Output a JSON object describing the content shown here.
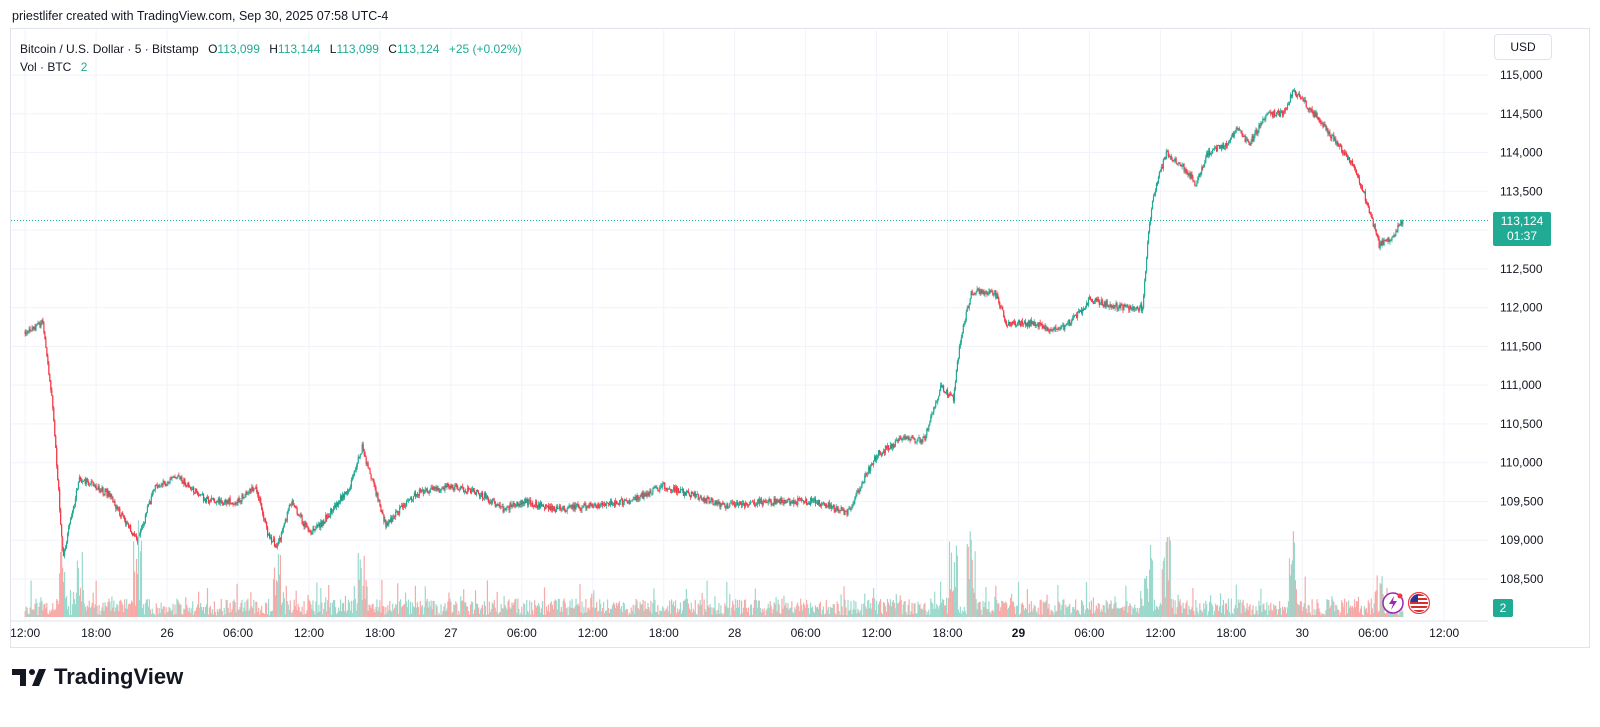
{
  "header": {
    "attribution": "priestlifer created with TradingView.com, Sep 30, 2025 07:58 UTC-4"
  },
  "legend": {
    "symbol": "Bitcoin / U.S. Dollar · 5 · Bitstamp",
    "open_label": "O",
    "open": "113,099",
    "high_label": "H",
    "high": "113,144",
    "low_label": "L",
    "low": "113,099",
    "close_label": "C",
    "close": "113,124",
    "change": "+25 (+0.02%)",
    "vol_label": "Vol · BTC",
    "vol_value": "2"
  },
  "toolbar": {
    "currency": "USD"
  },
  "price_badge": {
    "price": "113,124",
    "countdown": "01:37"
  },
  "vol_badge": "2",
  "logo": {
    "text": "TradingView"
  },
  "icons": [
    "lightning-event-icon",
    "us-flag-event-icon"
  ],
  "colors": {
    "up": "#22ab94",
    "down": "#f23645",
    "vol_up": "#9bd9cd",
    "vol_down": "#f7a9a7",
    "grid": "#f0f3fa",
    "axis_text": "#131722"
  },
  "chart_data": {
    "type": "candlestick",
    "title": "Bitcoin / U.S. Dollar · 5 · Bitstamp",
    "ylim": [
      108200,
      115250
    ],
    "y_ticks": [
      "115,000",
      "114,500",
      "114,000",
      "113,500",
      "113,000",
      "112,500",
      "112,000",
      "111,500",
      "111,000",
      "110,500",
      "110,000",
      "109,500",
      "109,000",
      "108,500"
    ],
    "y_tick_values": [
      115000,
      114500,
      114000,
      113500,
      113000,
      112500,
      112000,
      111500,
      111000,
      110500,
      110000,
      109500,
      109000,
      108500
    ],
    "x_ticks": [
      {
        "label": "12:00",
        "hour": 0,
        "bold": false
      },
      {
        "label": "18:00",
        "hour": 6,
        "bold": false
      },
      {
        "label": "26",
        "hour": 12,
        "bold": false
      },
      {
        "label": "06:00",
        "hour": 18,
        "bold": false
      },
      {
        "label": "12:00",
        "hour": 24,
        "bold": false
      },
      {
        "label": "18:00",
        "hour": 30,
        "bold": false
      },
      {
        "label": "27",
        "hour": 36,
        "bold": false
      },
      {
        "label": "06:00",
        "hour": 42,
        "bold": false
      },
      {
        "label": "12:00",
        "hour": 48,
        "bold": false
      },
      {
        "label": "18:00",
        "hour": 54,
        "bold": false
      },
      {
        "label": "28",
        "hour": 60,
        "bold": false
      },
      {
        "label": "06:00",
        "hour": 66,
        "bold": false
      },
      {
        "label": "12:00",
        "hour": 72,
        "bold": false
      },
      {
        "label": "18:00",
        "hour": 78,
        "bold": false
      },
      {
        "label": "29",
        "hour": 84,
        "bold": true
      },
      {
        "label": "06:00",
        "hour": 90,
        "bold": false
      },
      {
        "label": "12:00",
        "hour": 96,
        "bold": false
      },
      {
        "label": "18:00",
        "hour": 102,
        "bold": false
      },
      {
        "label": "30",
        "hour": 108,
        "bold": false
      },
      {
        "label": "06:00",
        "hour": 114,
        "bold": false
      },
      {
        "label": "12:00",
        "hour": 120,
        "bold": false
      }
    ],
    "x_range_hours": [
      -1.2,
      121
    ],
    "last_price": 113124,
    "price_path_keypoints": [
      [
        0,
        111700
      ],
      [
        1.5,
        111800
      ],
      [
        2.3,
        110800
      ],
      [
        3.2,
        108800
      ],
      [
        4.6,
        109800
      ],
      [
        7,
        109600
      ],
      [
        9.5,
        109000
      ],
      [
        11,
        109700
      ],
      [
        13,
        109800
      ],
      [
        15.5,
        109500
      ],
      [
        18,
        109500
      ],
      [
        19.5,
        109700
      ],
      [
        20.5,
        109100
      ],
      [
        21.3,
        108900
      ],
      [
        22.5,
        109500
      ],
      [
        24,
        109100
      ],
      [
        25,
        109200
      ],
      [
        27.5,
        109700
      ],
      [
        28.5,
        110200
      ],
      [
        29.5,
        109700
      ],
      [
        30.5,
        109200
      ],
      [
        33,
        109600
      ],
      [
        36,
        109700
      ],
      [
        38.5,
        109600
      ],
      [
        40.5,
        109400
      ],
      [
        42,
        109500
      ],
      [
        45,
        109400
      ],
      [
        48,
        109450
      ],
      [
        51,
        109500
      ],
      [
        54,
        109700
      ],
      [
        56,
        109600
      ],
      [
        59,
        109450
      ],
      [
        63,
        109500
      ],
      [
        67,
        109500
      ],
      [
        69.5,
        109350
      ],
      [
        72,
        110100
      ],
      [
        74,
        110300
      ],
      [
        76,
        110300
      ],
      [
        77.5,
        111000
      ],
      [
        78.5,
        110800
      ],
      [
        79,
        111500
      ],
      [
        80,
        112200
      ],
      [
        82,
        112200
      ],
      [
        83,
        111800
      ],
      [
        85,
        111800
      ],
      [
        87.5,
        111700
      ],
      [
        89,
        111900
      ],
      [
        90,
        112100
      ],
      [
        93,
        112000
      ],
      [
        94.5,
        112000
      ],
      [
        95,
        113000
      ],
      [
        95.5,
        113500
      ],
      [
        96.5,
        114000
      ],
      [
        98,
        113800
      ],
      [
        99,
        113600
      ],
      [
        100,
        114000
      ],
      [
        101.5,
        114100
      ],
      [
        102.5,
        114300
      ],
      [
        103.5,
        114100
      ],
      [
        105,
        114500
      ],
      [
        106.5,
        114500
      ],
      [
        107.2,
        114800
      ],
      [
        109,
        114500
      ],
      [
        111,
        114100
      ],
      [
        112.5,
        113800
      ],
      [
        113.8,
        113200
      ],
      [
        114.5,
        112800
      ],
      [
        115.5,
        112900
      ],
      [
        116.5,
        113124
      ]
    ],
    "volume_scale": [
      0,
      13
    ],
    "volume_spike_hours": [
      3.2,
      4.6,
      9.5,
      21.3,
      28.5,
      78.5,
      80,
      95,
      96.5,
      107.2,
      114.5
    ],
    "volume_label": "Vol · BTC"
  }
}
